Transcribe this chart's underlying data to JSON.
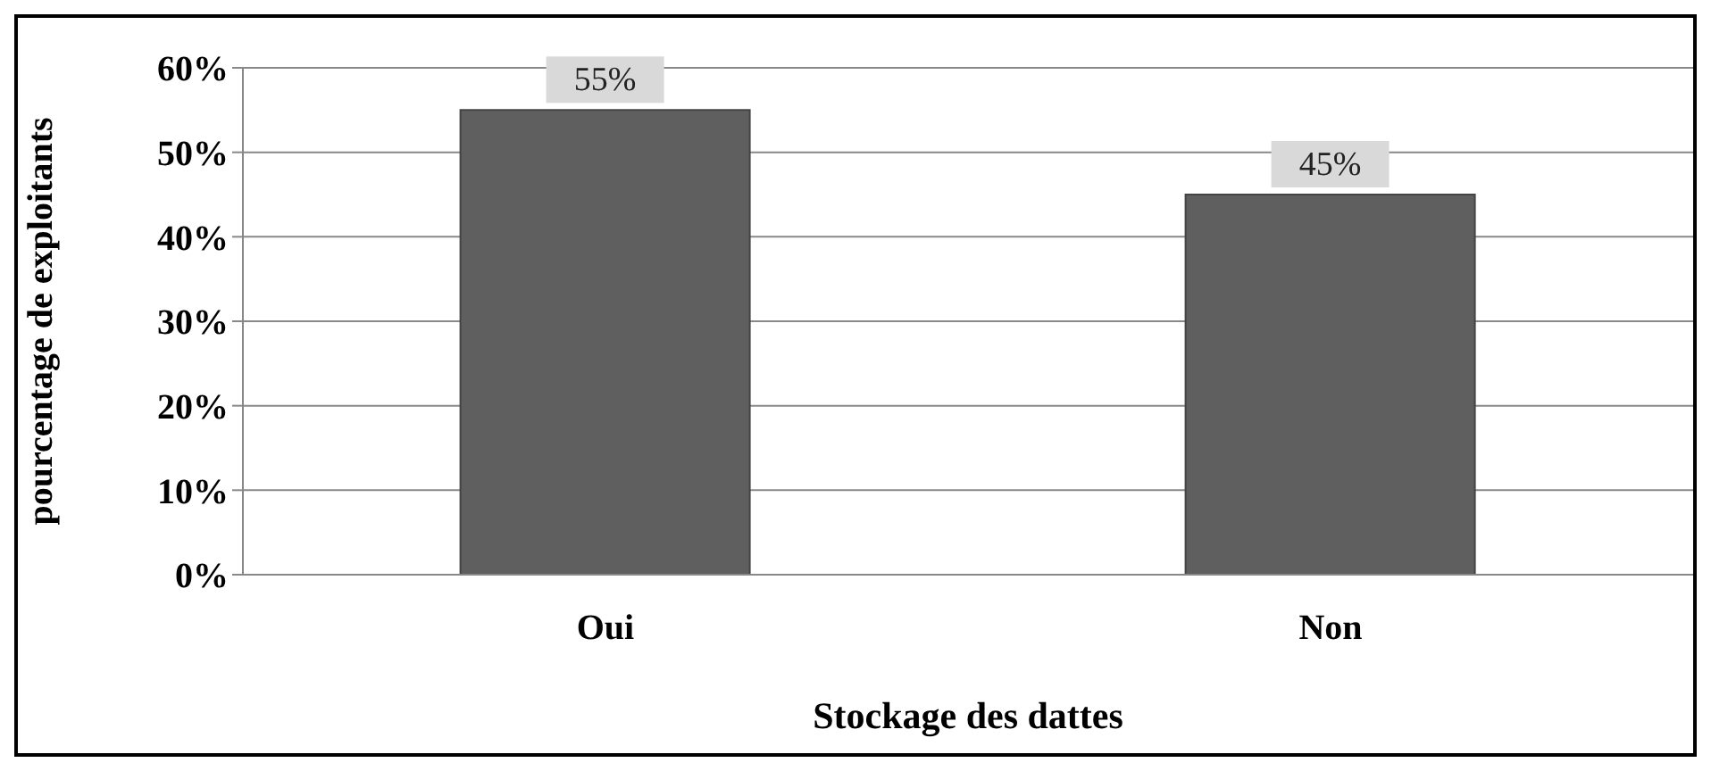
{
  "chart_data": {
    "type": "bar",
    "xlabel": "Stockage des dattes",
    "ylabel": "pourcentage de exploitants",
    "categories": [
      "Oui",
      "Non"
    ],
    "values": [
      55,
      45
    ],
    "value_labels": [
      "55%",
      "45%"
    ],
    "color": "#5f5f5f",
    "ylim": [
      0,
      60
    ],
    "yticks": [
      {
        "value": 0,
        "label": "0%"
      },
      {
        "value": 10,
        "label": "10%"
      },
      {
        "value": 20,
        "label": "20%"
      },
      {
        "value": 30,
        "label": "30%"
      },
      {
        "value": 40,
        "label": "40%"
      },
      {
        "value": 50,
        "label": "50%"
      },
      {
        "value": 60,
        "label": "60%"
      }
    ],
    "grid": "y",
    "legend": false
  }
}
